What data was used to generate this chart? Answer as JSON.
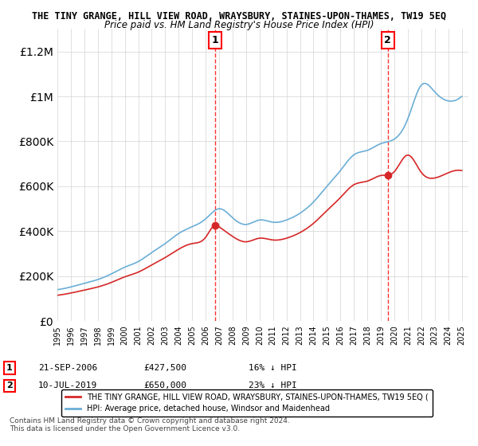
{
  "title": "THE TINY GRANGE, HILL VIEW ROAD, WRAYSBURY, STAINES-UPON-THAMES, TW19 5EQ",
  "subtitle": "Price paid vs. HM Land Registry's House Price Index (HPI)",
  "hpi_label": "HPI: Average price, detached house, Windsor and Maidenhead",
  "property_label": "THE TINY GRANGE, HILL VIEW ROAD, WRAYSBURY, STAINES-UPON-THAMES, TW19 5EQ (",
  "sale1_date": "21-SEP-2006",
  "sale1_price": 427500,
  "sale1_note": "16% ↓ HPI",
  "sale2_date": "10-JUL-2019",
  "sale2_price": 650000,
  "sale2_note": "23% ↓ HPI",
  "sale1_x": 2006.72,
  "sale2_x": 2019.52,
  "footnote": "Contains HM Land Registry data © Crown copyright and database right 2024.\nThis data is licensed under the Open Government Licence v3.0.",
  "hpi_color": "#6baed6",
  "property_color": "#d62728",
  "sale_marker_color": "#d62728",
  "ylim": [
    0,
    1300000
  ],
  "xlim_start": 1995,
  "xlim_end": 2025.5
}
